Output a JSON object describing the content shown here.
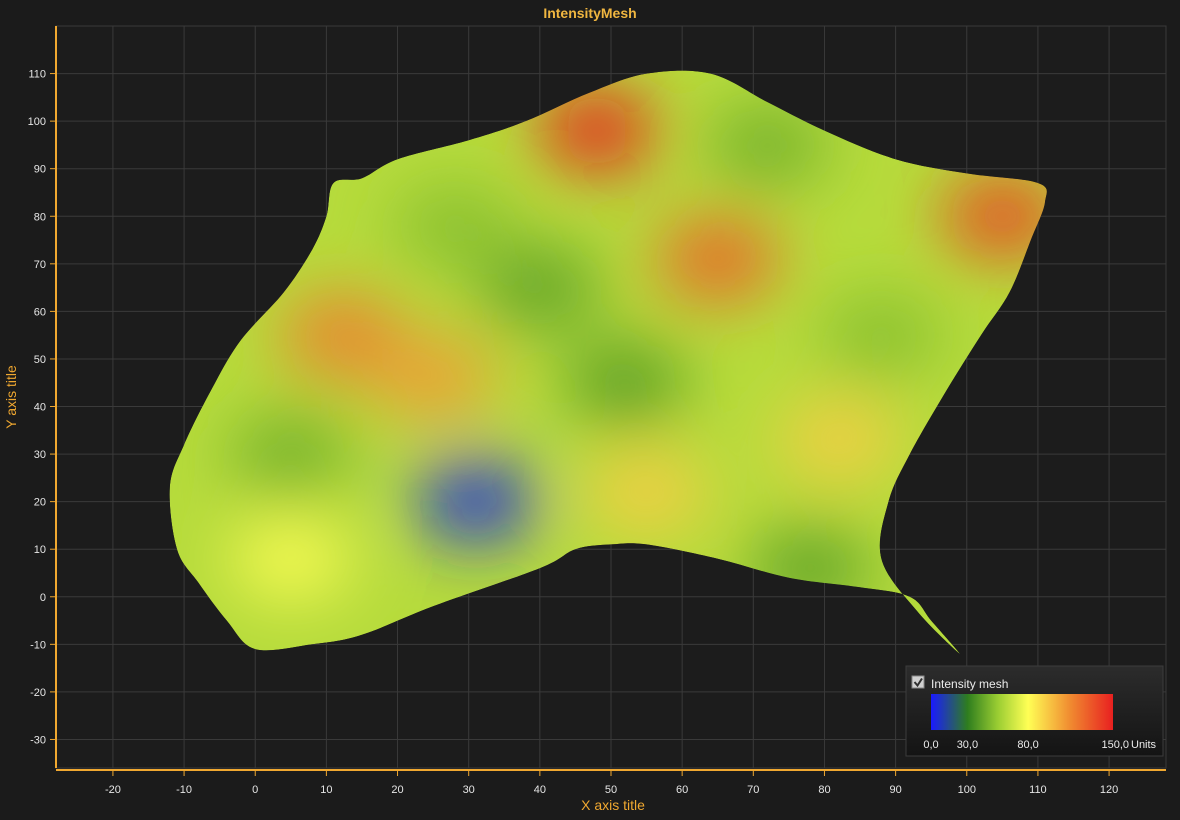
{
  "chart_data": {
    "type": "heatmap",
    "title": "IntensityMesh",
    "xlabel": "X axis title",
    "ylabel": "Y axis title",
    "xlim": [
      -28,
      128
    ],
    "ylim": [
      -36,
      120
    ],
    "x_ticks": [
      -20,
      -10,
      0,
      10,
      20,
      30,
      40,
      50,
      60,
      70,
      80,
      90,
      100,
      110,
      120
    ],
    "y_ticks": [
      -30,
      -20,
      -10,
      0,
      10,
      20,
      30,
      40,
      50,
      60,
      70,
      80,
      90,
      100,
      110
    ],
    "grid": true,
    "background_color": "#1b1b1b",
    "axis_color": "#f0a830",
    "mesh_outline": [
      [
        0,
        -11
      ],
      [
        8,
        -10
      ],
      [
        15,
        -8
      ],
      [
        25,
        -2
      ],
      [
        40,
        6
      ],
      [
        45,
        10
      ],
      [
        50,
        11
      ],
      [
        55,
        11
      ],
      [
        65,
        8
      ],
      [
        75,
        4
      ],
      [
        85,
        2
      ],
      [
        92,
        0
      ],
      [
        95,
        -5
      ],
      [
        99,
        -12
      ],
      [
        93,
        -3
      ],
      [
        88,
        8
      ],
      [
        89,
        20
      ],
      [
        92,
        30
      ],
      [
        97,
        43
      ],
      [
        102,
        55
      ],
      [
        106,
        64
      ],
      [
        109,
        75
      ],
      [
        111,
        83
      ],
      [
        110,
        87
      ],
      [
        100,
        89
      ],
      [
        90,
        92
      ],
      [
        80,
        98
      ],
      [
        72,
        104
      ],
      [
        64,
        110
      ],
      [
        55,
        110
      ],
      [
        47,
        106
      ],
      [
        38,
        100
      ],
      [
        30,
        96
      ],
      [
        20,
        92
      ],
      [
        15,
        88
      ],
      [
        11,
        87
      ],
      [
        10,
        80
      ],
      [
        8,
        73
      ],
      [
        4,
        64
      ],
      [
        -2,
        54
      ],
      [
        -6,
        44
      ],
      [
        -10,
        32
      ],
      [
        -12,
        23
      ],
      [
        -11,
        10
      ],
      [
        -8,
        3
      ],
      [
        -4,
        -5
      ]
    ],
    "intensity_peaks": [
      {
        "x": 48,
        "y": 98,
        "value": 150
      },
      {
        "x": 105,
        "y": 80,
        "value": 140
      },
      {
        "x": 65,
        "y": 71,
        "value": 130
      },
      {
        "x": 12,
        "y": 55,
        "value": 120
      },
      {
        "x": 25,
        "y": 46,
        "value": 110
      },
      {
        "x": 82,
        "y": 33,
        "value": 95
      },
      {
        "x": 55,
        "y": 22,
        "value": 95
      },
      {
        "x": 5,
        "y": 8,
        "value": 80
      },
      {
        "x": 72,
        "y": 95,
        "value": 45
      },
      {
        "x": 28,
        "y": 78,
        "value": 50
      },
      {
        "x": 40,
        "y": 65,
        "value": 40
      },
      {
        "x": 52,
        "y": 45,
        "value": 38
      },
      {
        "x": 88,
        "y": 55,
        "value": 50
      },
      {
        "x": 5,
        "y": 30,
        "value": 45
      },
      {
        "x": 31,
        "y": 20,
        "value": 5
      },
      {
        "x": 78,
        "y": 6,
        "value": 40
      }
    ],
    "legend": {
      "label": "Intensity mesh",
      "checked": true,
      "placement": "bottom-right",
      "unit": "Units",
      "stops": [
        {
          "value": 0,
          "color": "#1a1aff"
        },
        {
          "value": 30,
          "color": "#2e7d1e"
        },
        {
          "value": 55,
          "color": "#9acd32"
        },
        {
          "value": 80,
          "color": "#ffff55"
        },
        {
          "value": 115,
          "color": "#f08a30"
        },
        {
          "value": 150,
          "color": "#e82020"
        }
      ],
      "tick_labels": [
        {
          "value": 0,
          "label": "0,0"
        },
        {
          "value": 30,
          "label": "30,0"
        },
        {
          "value": 80,
          "label": "80,0"
        },
        {
          "value": 150,
          "label": "150,0"
        }
      ]
    }
  }
}
